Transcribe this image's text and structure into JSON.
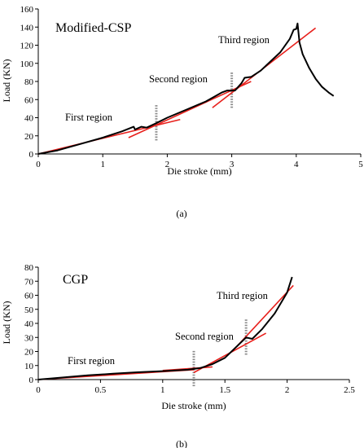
{
  "chart_data": [
    {
      "type": "line",
      "panel": "(a)",
      "title": "Modified-CSP",
      "xlabel": "Die stroke (mm)",
      "ylabel": "Load (KN)",
      "xlim": [
        0,
        5
      ],
      "ylim": [
        0,
        160
      ],
      "xticks": [
        "0",
        "1",
        "2",
        "3",
        "4",
        "5"
      ],
      "yticks": [
        "0",
        "20",
        "40",
        "60",
        "80",
        "100",
        "120",
        "140",
        "160"
      ],
      "series": [
        {
          "color": "#000000",
          "points": [
            [
              0,
              0
            ],
            [
              0.3,
              4
            ],
            [
              0.6,
              10
            ],
            [
              1.0,
              18
            ],
            [
              1.3,
              25
            ],
            [
              1.48,
              30
            ],
            [
              1.5,
              27
            ],
            [
              1.6,
              30
            ],
            [
              1.68,
              29
            ],
            [
              1.8,
              33
            ],
            [
              2.0,
              40
            ],
            [
              2.3,
              49
            ],
            [
              2.6,
              58
            ],
            [
              2.85,
              68
            ],
            [
              2.93,
              70
            ],
            [
              3.05,
              70
            ],
            [
              3.15,
              78
            ],
            [
              3.2,
              84
            ],
            [
              3.3,
              85
            ],
            [
              3.45,
              92
            ],
            [
              3.6,
              102
            ],
            [
              3.75,
              112
            ],
            [
              3.9,
              127
            ],
            [
              3.96,
              137
            ],
            [
              4.0,
              138
            ],
            [
              4.02,
              144
            ],
            [
              4.05,
              123
            ],
            [
              4.1,
              110
            ],
            [
              4.2,
              95
            ],
            [
              4.3,
              83
            ],
            [
              4.4,
              74
            ],
            [
              4.5,
              68
            ],
            [
              4.58,
              64
            ]
          ]
        }
      ],
      "fit_lines": [
        {
          "color": "#e8201c",
          "points": [
            [
              0,
              0
            ],
            [
              2.2,
              38
            ]
          ]
        },
        {
          "color": "#e8201c",
          "points": [
            [
              1.4,
              18
            ],
            [
              3.3,
              80
            ]
          ]
        },
        {
          "color": "#e8201c",
          "points": [
            [
              2.7,
              51
            ],
            [
              4.3,
              139
            ]
          ]
        }
      ],
      "region_dividers": [
        1.83,
        3.0
      ],
      "annotations": [
        "First region",
        "Second region",
        "Third region"
      ]
    },
    {
      "type": "line",
      "panel": "(b)",
      "title": "CGP",
      "xlabel": "Die stroke (mm)",
      "ylabel": "Load (KN)",
      "xlim": [
        0,
        2.5
      ],
      "ylim": [
        0,
        80
      ],
      "xticks": [
        "0",
        "0.5",
        "1",
        "1.5",
        "2",
        "2.5"
      ],
      "yticks": [
        "0",
        "10",
        "20",
        "30",
        "40",
        "50",
        "60",
        "70",
        "80"
      ],
      "series": [
        {
          "color": "#000000",
          "points": [
            [
              0,
              0
            ],
            [
              0.2,
              1.5
            ],
            [
              0.4,
              3
            ],
            [
              0.6,
              4.2
            ],
            [
              0.8,
              5.2
            ],
            [
              1.0,
              6
            ],
            [
              1.1,
              6.5
            ],
            [
              1.2,
              7
            ],
            [
              1.3,
              8.2
            ],
            [
              1.4,
              11
            ],
            [
              1.5,
              15.5
            ],
            [
              1.6,
              24
            ],
            [
              1.67,
              30
            ],
            [
              1.72,
              29
            ],
            [
              1.8,
              36
            ],
            [
              1.9,
              47
            ],
            [
              2.0,
              62
            ],
            [
              2.04,
              73
            ]
          ]
        }
      ],
      "fit_lines": [
        {
          "color": "#e8201c",
          "points": [
            [
              0,
              0
            ],
            [
              1.25,
              7
            ]
          ]
        },
        {
          "color": "#e8201c",
          "points": [
            [
              1.0,
              6.5
            ],
            [
              1.4,
              9
            ]
          ]
        },
        {
          "color": "#e8201c",
          "points": [
            [
              1.25,
              5
            ],
            [
              1.83,
              33
            ]
          ]
        },
        {
          "color": "#e8201c",
          "points": [
            [
              1.6,
              24
            ],
            [
              2.05,
              67
            ]
          ]
        }
      ],
      "region_dividers": [
        1.25,
        1.67
      ],
      "annotations": [
        "First region",
        "Second region",
        "Third region"
      ]
    }
  ]
}
